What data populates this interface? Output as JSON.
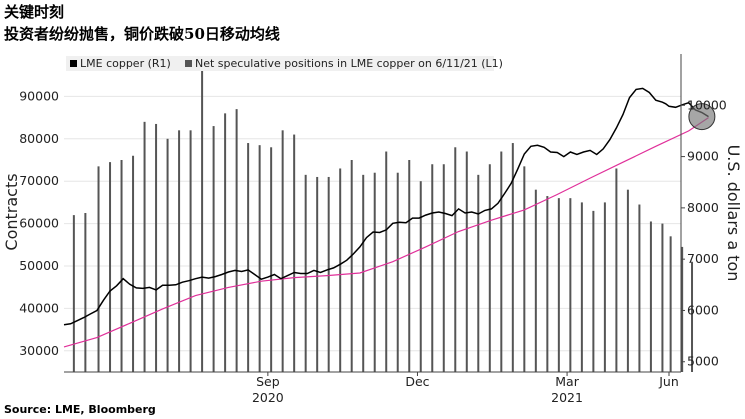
{
  "header": {
    "title": "关键时刻",
    "subtitle": "投资者纷纷抛售，铜价跌破50日移动均线"
  },
  "footer": {
    "source": "Source: LME, Bloomberg"
  },
  "colors": {
    "price": "#000000",
    "ma": "#e0309a",
    "bars": "#555555",
    "circle": "#777777"
  },
  "chart_data": {
    "type": "bar+line",
    "legend": [
      {
        "name": "LME copper (R1)"
      },
      {
        "name": "Net speculative positions in LME copper on 6/11/21 (L1)"
      }
    ],
    "left_axis": {
      "label": "Contracts",
      "ticks": [
        "30000",
        "40000",
        "50000",
        "60000",
        "70000",
        "80000",
        "90000"
      ],
      "range": [
        25000,
        100000
      ]
    },
    "right_axis": {
      "label": "U.S. dollars a ton",
      "ticks": [
        "5000",
        "6000",
        "7000",
        "8000",
        "9000",
        "10000"
      ],
      "range": [
        4800,
        11000
      ]
    },
    "x_axis": {
      "range": [
        0,
        368
      ],
      "months": [
        {
          "label": "Sep",
          "x": 124
        },
        {
          "label": "Dec",
          "x": 215
        },
        {
          "label": "Mar",
          "x": 306
        },
        {
          "label": "Jun",
          "x": 368
        }
      ],
      "years": [
        {
          "label": "2020",
          "x": 124
        },
        {
          "label": "2021",
          "x": 306
        }
      ]
    },
    "bars": [
      {
        "x": 6,
        "v": 62000
      },
      {
        "x": 13,
        "v": 62500
      },
      {
        "x": 21,
        "v": 73500
      },
      {
        "x": 28,
        "v": 74500
      },
      {
        "x": 35,
        "v": 75000
      },
      {
        "x": 42,
        "v": 76000
      },
      {
        "x": 49,
        "v": 84000
      },
      {
        "x": 56,
        "v": 83500
      },
      {
        "x": 63,
        "v": 80000
      },
      {
        "x": 70,
        "v": 82000
      },
      {
        "x": 77,
        "v": 82000
      },
      {
        "x": 84,
        "v": 99000
      },
      {
        "x": 91,
        "v": 83000
      },
      {
        "x": 98,
        "v": 86000
      },
      {
        "x": 105,
        "v": 87000
      },
      {
        "x": 112,
        "v": 79000
      },
      {
        "x": 119,
        "v": 78500
      },
      {
        "x": 126,
        "v": 78000
      },
      {
        "x": 133,
        "v": 82000
      },
      {
        "x": 140,
        "v": 81000
      },
      {
        "x": 147,
        "v": 71500
      },
      {
        "x": 154,
        "v": 71000
      },
      {
        "x": 161,
        "v": 71000
      },
      {
        "x": 168,
        "v": 73000
      },
      {
        "x": 175,
        "v": 75000
      },
      {
        "x": 182,
        "v": 71500
      },
      {
        "x": 189,
        "v": 72000
      },
      {
        "x": 196,
        "v": 77000
      },
      {
        "x": 203,
        "v": 72000
      },
      {
        "x": 210,
        "v": 75000
      },
      {
        "x": 217,
        "v": 70000
      },
      {
        "x": 224,
        "v": 74000
      },
      {
        "x": 231,
        "v": 74000
      },
      {
        "x": 238,
        "v": 78000
      },
      {
        "x": 245,
        "v": 77000
      },
      {
        "x": 252,
        "v": 71500
      },
      {
        "x": 259,
        "v": 74000
      },
      {
        "x": 266,
        "v": 77000
      },
      {
        "x": 273,
        "v": 79000
      },
      {
        "x": 280,
        "v": 73500
      },
      {
        "x": 287,
        "v": 68000
      },
      {
        "x": 294,
        "v": 66500
      },
      {
        "x": 301,
        "v": 66000
      },
      {
        "x": 308,
        "v": 66000
      },
      {
        "x": 315,
        "v": 65000
      },
      {
        "x": 322,
        "v": 63000
      },
      {
        "x": 329,
        "v": 65000
      },
      {
        "x": 336,
        "v": 73000
      },
      {
        "x": 343,
        "v": 68000
      },
      {
        "x": 350,
        "v": 64500
      },
      {
        "x": 357,
        "v": 60500
      },
      {
        "x": 364,
        "v": 60000
      },
      {
        "x": 369,
        "v": 57000
      },
      {
        "x": 376,
        "v": 54500
      },
      {
        "x": 382,
        "v": 51000
      }
    ],
    "price": [
      {
        "x": 0,
        "y": 5720
      },
      {
        "x": 4,
        "y": 5740
      },
      {
        "x": 8,
        "y": 5800
      },
      {
        "x": 12,
        "y": 5860
      },
      {
        "x": 16,
        "y": 5930
      },
      {
        "x": 20,
        "y": 6000
      },
      {
        "x": 24,
        "y": 6200
      },
      {
        "x": 28,
        "y": 6380
      },
      {
        "x": 32,
        "y": 6480
      },
      {
        "x": 36,
        "y": 6620
      },
      {
        "x": 40,
        "y": 6510
      },
      {
        "x": 44,
        "y": 6440
      },
      {
        "x": 48,
        "y": 6430
      },
      {
        "x": 52,
        "y": 6450
      },
      {
        "x": 56,
        "y": 6400
      },
      {
        "x": 60,
        "y": 6490
      },
      {
        "x": 64,
        "y": 6490
      },
      {
        "x": 68,
        "y": 6500
      },
      {
        "x": 72,
        "y": 6550
      },
      {
        "x": 76,
        "y": 6580
      },
      {
        "x": 80,
        "y": 6620
      },
      {
        "x": 84,
        "y": 6650
      },
      {
        "x": 88,
        "y": 6630
      },
      {
        "x": 92,
        "y": 6660
      },
      {
        "x": 96,
        "y": 6700
      },
      {
        "x": 100,
        "y": 6750
      },
      {
        "x": 104,
        "y": 6780
      },
      {
        "x": 108,
        "y": 6760
      },
      {
        "x": 112,
        "y": 6790
      },
      {
        "x": 116,
        "y": 6700
      },
      {
        "x": 120,
        "y": 6610
      },
      {
        "x": 124,
        "y": 6650
      },
      {
        "x": 128,
        "y": 6700
      },
      {
        "x": 132,
        "y": 6620
      },
      {
        "x": 136,
        "y": 6680
      },
      {
        "x": 140,
        "y": 6740
      },
      {
        "x": 144,
        "y": 6720
      },
      {
        "x": 148,
        "y": 6720
      },
      {
        "x": 152,
        "y": 6780
      },
      {
        "x": 156,
        "y": 6740
      },
      {
        "x": 160,
        "y": 6790
      },
      {
        "x": 164,
        "y": 6830
      },
      {
        "x": 168,
        "y": 6900
      },
      {
        "x": 172,
        "y": 6980
      },
      {
        "x": 176,
        "y": 7100
      },
      {
        "x": 180,
        "y": 7240
      },
      {
        "x": 184,
        "y": 7420
      },
      {
        "x": 188,
        "y": 7530
      },
      {
        "x": 192,
        "y": 7520
      },
      {
        "x": 196,
        "y": 7570
      },
      {
        "x": 200,
        "y": 7700
      },
      {
        "x": 204,
        "y": 7720
      },
      {
        "x": 208,
        "y": 7710
      },
      {
        "x": 212,
        "y": 7800
      },
      {
        "x": 216,
        "y": 7800
      },
      {
        "x": 220,
        "y": 7860
      },
      {
        "x": 224,
        "y": 7900
      },
      {
        "x": 228,
        "y": 7920
      },
      {
        "x": 232,
        "y": 7890
      },
      {
        "x": 236,
        "y": 7850
      },
      {
        "x": 240,
        "y": 7980
      },
      {
        "x": 244,
        "y": 7900
      },
      {
        "x": 248,
        "y": 7920
      },
      {
        "x": 252,
        "y": 7880
      },
      {
        "x": 256,
        "y": 7950
      },
      {
        "x": 260,
        "y": 7980
      },
      {
        "x": 264,
        "y": 8090
      },
      {
        "x": 268,
        "y": 8280
      },
      {
        "x": 272,
        "y": 8480
      },
      {
        "x": 276,
        "y": 8760
      },
      {
        "x": 280,
        "y": 9050
      },
      {
        "x": 284,
        "y": 9200
      },
      {
        "x": 288,
        "y": 9220
      },
      {
        "x": 292,
        "y": 9180
      },
      {
        "x": 296,
        "y": 9090
      },
      {
        "x": 300,
        "y": 9080
      },
      {
        "x": 304,
        "y": 9000
      },
      {
        "x": 308,
        "y": 9090
      },
      {
        "x": 312,
        "y": 9040
      },
      {
        "x": 316,
        "y": 9090
      },
      {
        "x": 320,
        "y": 9120
      },
      {
        "x": 324,
        "y": 9040
      },
      {
        "x": 328,
        "y": 9150
      },
      {
        "x": 332,
        "y": 9330
      },
      {
        "x": 336,
        "y": 9560
      },
      {
        "x": 340,
        "y": 9820
      },
      {
        "x": 344,
        "y": 10150
      },
      {
        "x": 348,
        "y": 10310
      },
      {
        "x": 352,
        "y": 10330
      },
      {
        "x": 356,
        "y": 10250
      },
      {
        "x": 360,
        "y": 10100
      },
      {
        "x": 364,
        "y": 10060
      },
      {
        "x": 366,
        "y": 10030
      },
      {
        "x": 368,
        "y": 9980
      },
      {
        "x": 372,
        "y": 9960
      },
      {
        "x": 376,
        "y": 10010
      },
      {
        "x": 380,
        "y": 10050
      },
      {
        "x": 384,
        "y": 9910
      },
      {
        "x": 388,
        "y": 9860
      },
      {
        "x": 392,
        "y": 9780
      }
    ],
    "ma50": [
      {
        "x": 0,
        "y": 5290
      },
      {
        "x": 20,
        "y": 5470
      },
      {
        "x": 40,
        "y": 5750
      },
      {
        "x": 60,
        "y": 6030
      },
      {
        "x": 80,
        "y": 6290
      },
      {
        "x": 100,
        "y": 6450
      },
      {
        "x": 120,
        "y": 6570
      },
      {
        "x": 140,
        "y": 6640
      },
      {
        "x": 160,
        "y": 6680
      },
      {
        "x": 180,
        "y": 6730
      },
      {
        "x": 200,
        "y": 6950
      },
      {
        "x": 220,
        "y": 7240
      },
      {
        "x": 240,
        "y": 7540
      },
      {
        "x": 260,
        "y": 7760
      },
      {
        "x": 280,
        "y": 7960
      },
      {
        "x": 300,
        "y": 8260
      },
      {
        "x": 320,
        "y": 8580
      },
      {
        "x": 340,
        "y": 8890
      },
      {
        "x": 360,
        "y": 9200
      },
      {
        "x": 380,
        "y": 9500
      },
      {
        "x": 392,
        "y": 9760
      }
    ]
  }
}
